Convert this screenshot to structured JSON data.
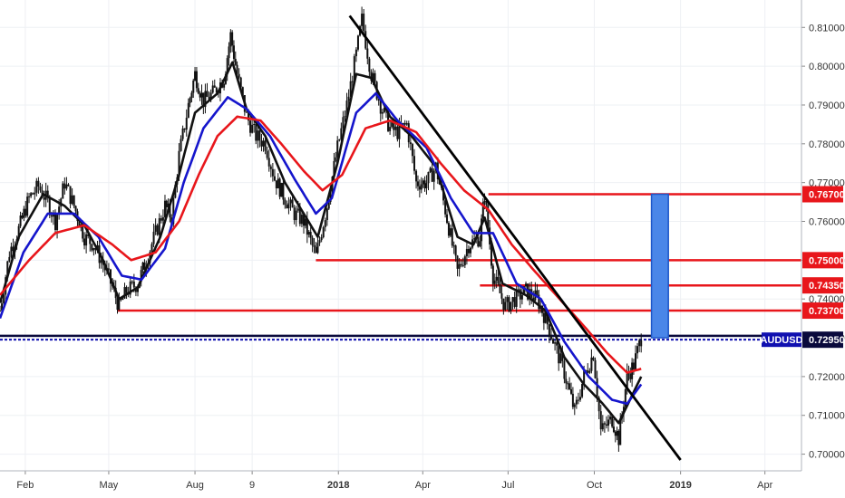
{
  "chart_data": {
    "type": "line",
    "symbol": "AUDUSD",
    "ylim": [
      0.6985,
      0.8145
    ],
    "x_range": [
      "2017-01-05",
      "2019-05-10"
    ],
    "y_ticks": [
      "0.81000",
      "0.80000",
      "0.79000",
      "0.78000",
      "0.77000",
      "0.76000",
      "0.75000",
      "0.74000",
      "0.73000",
      "0.72000",
      "0.71000",
      "0.70000"
    ],
    "x_ticks": [
      {
        "label": "Feb",
        "date": "2017-02-01"
      },
      {
        "label": "May",
        "date": "2017-05-01"
      },
      {
        "label": "Aug",
        "date": "2017-08-01"
      },
      {
        "label": "9",
        "date": "2017-10-01"
      },
      {
        "label": "2018",
        "date": "2018-01-01"
      },
      {
        "label": "Apr",
        "date": "2018-04-01"
      },
      {
        "label": "Jul",
        "date": "2018-07-01"
      },
      {
        "label": "Oct",
        "date": "2018-10-01"
      },
      {
        "label": "2019",
        "date": "2019-01-01"
      },
      {
        "label": "Apr",
        "date": "2019-04-01"
      }
    ],
    "price_labels": [
      {
        "text": "0.76700",
        "value": 0.767
      },
      {
        "text": "0.75000",
        "value": 0.75
      },
      {
        "text": "0.74350",
        "value": 0.7435
      },
      {
        "text": "0.73700",
        "value": 0.737
      },
      {
        "text": "0.72950",
        "value": 0.7295
      }
    ],
    "horizontal_levels": [
      {
        "value": 0.767,
        "from": "2018-06-10",
        "to": "2019-05-10",
        "color": "#e8161b"
      },
      {
        "value": 0.75,
        "from": "2017-12-08",
        "to": "2019-05-10",
        "color": "#e8161b"
      },
      {
        "value": 0.7435,
        "from": "2018-06-01",
        "to": "2019-05-10",
        "color": "#e8161b"
      },
      {
        "value": 0.737,
        "from": "2017-05-10",
        "to": "2019-05-10",
        "color": "#e8161b"
      },
      {
        "value": 0.7305,
        "from": "2017-01-05",
        "to": "2019-05-10",
        "color": "#0a0a3c"
      }
    ],
    "current_price": {
      "value": 0.7295,
      "color": "#1010b0"
    },
    "trendline": {
      "from": {
        "date": "2018-01-13",
        "value": 0.813
      },
      "to": {
        "date": "2019-01-01",
        "value": 0.6985
      }
    },
    "target_box": {
      "from": "2018-12-01",
      "to": "2018-12-19",
      "low": 0.73,
      "high": 0.767,
      "color": "#4a86e8"
    },
    "series": [
      {
        "name": "price",
        "color": "#111111",
        "style": "candles",
        "values": [
          [
            "2017-01-05",
            0.737
          ],
          [
            "2017-01-15",
            0.752
          ],
          [
            "2017-01-25",
            0.758
          ],
          [
            "2017-02-05",
            0.766
          ],
          [
            "2017-02-15",
            0.769
          ],
          [
            "2017-02-25",
            0.765
          ],
          [
            "2017-03-05",
            0.76
          ],
          [
            "2017-03-15",
            0.77
          ],
          [
            "2017-03-25",
            0.764
          ],
          [
            "2017-04-05",
            0.756
          ],
          [
            "2017-04-15",
            0.754
          ],
          [
            "2017-04-25",
            0.749
          ],
          [
            "2017-05-05",
            0.743
          ],
          [
            "2017-05-12",
            0.738
          ],
          [
            "2017-05-20",
            0.742
          ],
          [
            "2017-06-01",
            0.744
          ],
          [
            "2017-06-10",
            0.75
          ],
          [
            "2017-06-20",
            0.757
          ],
          [
            "2017-06-30",
            0.764
          ],
          [
            "2017-07-07",
            0.761
          ],
          [
            "2017-07-15",
            0.777
          ],
          [
            "2017-07-25",
            0.79
          ],
          [
            "2017-08-01",
            0.798
          ],
          [
            "2017-08-10",
            0.791
          ],
          [
            "2017-08-20",
            0.793
          ],
          [
            "2017-09-01",
            0.797
          ],
          [
            "2017-09-08",
            0.808
          ],
          [
            "2017-09-15",
            0.798
          ],
          [
            "2017-09-25",
            0.787
          ],
          [
            "2017-10-05",
            0.782
          ],
          [
            "2017-10-15",
            0.78
          ],
          [
            "2017-10-25",
            0.771
          ],
          [
            "2017-11-05",
            0.766
          ],
          [
            "2017-11-15",
            0.762
          ],
          [
            "2017-11-25",
            0.76
          ],
          [
            "2017-12-08",
            0.751
          ],
          [
            "2017-12-20",
            0.764
          ],
          [
            "2017-12-31",
            0.779
          ],
          [
            "2018-01-10",
            0.79
          ],
          [
            "2018-01-20",
            0.803
          ],
          [
            "2018-01-26",
            0.812
          ],
          [
            "2018-02-05",
            0.798
          ],
          [
            "2018-02-15",
            0.79
          ],
          [
            "2018-02-25",
            0.784
          ],
          [
            "2018-03-05",
            0.783
          ],
          [
            "2018-03-15",
            0.785
          ],
          [
            "2018-03-25",
            0.77
          ],
          [
            "2018-04-05",
            0.77
          ],
          [
            "2018-04-15",
            0.774
          ],
          [
            "2018-04-25",
            0.763
          ],
          [
            "2018-05-08",
            0.747
          ],
          [
            "2018-05-20",
            0.754
          ],
          [
            "2018-06-01",
            0.756
          ],
          [
            "2018-06-06",
            0.767
          ],
          [
            "2018-06-15",
            0.746
          ],
          [
            "2018-06-28",
            0.738
          ],
          [
            "2018-07-08",
            0.74
          ],
          [
            "2018-07-20",
            0.742
          ],
          [
            "2018-08-01",
            0.74
          ],
          [
            "2018-08-10",
            0.735
          ],
          [
            "2018-08-20",
            0.728
          ],
          [
            "2018-08-30",
            0.721
          ],
          [
            "2018-09-10",
            0.711
          ],
          [
            "2018-09-20",
            0.72
          ],
          [
            "2018-09-30",
            0.726
          ],
          [
            "2018-10-08",
            0.706
          ],
          [
            "2018-10-20",
            0.709
          ],
          [
            "2018-10-27",
            0.704
          ],
          [
            "2018-11-05",
            0.72
          ],
          [
            "2018-11-12",
            0.723
          ],
          [
            "2018-11-20",
            0.73
          ]
        ]
      },
      {
        "name": "ma-fast",
        "color": "#111111",
        "style": "line",
        "values": [
          [
            "2017-01-05",
            0.739
          ],
          [
            "2017-01-25",
            0.756
          ],
          [
            "2017-02-20",
            0.767
          ],
          [
            "2017-03-15",
            0.764
          ],
          [
            "2017-04-05",
            0.759
          ],
          [
            "2017-04-25",
            0.75
          ],
          [
            "2017-05-12",
            0.74
          ],
          [
            "2017-06-01",
            0.743
          ],
          [
            "2017-06-25",
            0.756
          ],
          [
            "2017-07-15",
            0.772
          ],
          [
            "2017-08-01",
            0.788
          ],
          [
            "2017-08-25",
            0.793
          ],
          [
            "2017-09-10",
            0.801
          ],
          [
            "2017-09-25",
            0.789
          ],
          [
            "2017-10-15",
            0.782
          ],
          [
            "2017-11-05",
            0.77
          ],
          [
            "2017-11-25",
            0.762
          ],
          [
            "2017-12-10",
            0.756
          ],
          [
            "2017-12-31",
            0.775
          ],
          [
            "2018-01-20",
            0.798
          ],
          [
            "2018-02-05",
            0.797
          ],
          [
            "2018-02-25",
            0.787
          ],
          [
            "2018-03-20",
            0.782
          ],
          [
            "2018-04-15",
            0.774
          ],
          [
            "2018-05-08",
            0.756
          ],
          [
            "2018-05-25",
            0.754
          ],
          [
            "2018-06-06",
            0.761
          ],
          [
            "2018-06-25",
            0.744
          ],
          [
            "2018-07-20",
            0.741
          ],
          [
            "2018-08-10",
            0.737
          ],
          [
            "2018-08-30",
            0.725
          ],
          [
            "2018-09-20",
            0.718
          ],
          [
            "2018-10-10",
            0.713
          ],
          [
            "2018-10-27",
            0.708
          ],
          [
            "2018-11-20",
            0.72
          ]
        ]
      },
      {
        "name": "ma-medium",
        "color": "#1515cc",
        "style": "line",
        "values": [
          [
            "2017-01-05",
            0.735
          ],
          [
            "2017-01-30",
            0.752
          ],
          [
            "2017-02-25",
            0.762
          ],
          [
            "2017-03-25",
            0.762
          ],
          [
            "2017-04-20",
            0.756
          ],
          [
            "2017-05-15",
            0.746
          ],
          [
            "2017-06-05",
            0.745
          ],
          [
            "2017-06-30",
            0.753
          ],
          [
            "2017-07-20",
            0.77
          ],
          [
            "2017-08-10",
            0.784
          ],
          [
            "2017-09-05",
            0.792
          ],
          [
            "2017-09-25",
            0.789
          ],
          [
            "2017-10-20",
            0.782
          ],
          [
            "2017-11-15",
            0.771
          ],
          [
            "2017-12-08",
            0.762
          ],
          [
            "2017-12-25",
            0.766
          ],
          [
            "2018-01-20",
            0.788
          ],
          [
            "2018-02-10",
            0.793
          ],
          [
            "2018-03-05",
            0.786
          ],
          [
            "2018-04-05",
            0.779
          ],
          [
            "2018-05-01",
            0.766
          ],
          [
            "2018-05-25",
            0.757
          ],
          [
            "2018-06-15",
            0.757
          ],
          [
            "2018-07-10",
            0.744
          ],
          [
            "2018-08-05",
            0.74
          ],
          [
            "2018-08-30",
            0.729
          ],
          [
            "2018-09-25",
            0.72
          ],
          [
            "2018-10-20",
            0.714
          ],
          [
            "2018-11-05",
            0.713
          ],
          [
            "2018-11-20",
            0.718
          ]
        ]
      },
      {
        "name": "ma-slow",
        "color": "#e8161b",
        "style": "line",
        "values": [
          [
            "2017-01-05",
            0.741
          ],
          [
            "2017-02-05",
            0.75
          ],
          [
            "2017-03-05",
            0.757
          ],
          [
            "2017-04-05",
            0.759
          ],
          [
            "2017-05-05",
            0.754
          ],
          [
            "2017-05-25",
            0.75
          ],
          [
            "2017-06-20",
            0.752
          ],
          [
            "2017-07-15",
            0.76
          ],
          [
            "2017-08-05",
            0.772
          ],
          [
            "2017-08-25",
            0.782
          ],
          [
            "2017-09-15",
            0.787
          ],
          [
            "2017-10-10",
            0.786
          ],
          [
            "2017-11-01",
            0.78
          ],
          [
            "2017-11-25",
            0.773
          ],
          [
            "2017-12-15",
            0.768
          ],
          [
            "2018-01-05",
            0.772
          ],
          [
            "2018-01-30",
            0.784
          ],
          [
            "2018-02-25",
            0.786
          ],
          [
            "2018-03-25",
            0.783
          ],
          [
            "2018-04-20",
            0.775
          ],
          [
            "2018-05-15",
            0.768
          ],
          [
            "2018-06-10",
            0.763
          ],
          [
            "2018-07-05",
            0.754
          ],
          [
            "2018-07-30",
            0.747
          ],
          [
            "2018-08-25",
            0.74
          ],
          [
            "2018-09-20",
            0.733
          ],
          [
            "2018-10-15",
            0.726
          ],
          [
            "2018-11-05",
            0.721
          ],
          [
            "2018-11-20",
            0.722
          ]
        ]
      }
    ]
  }
}
